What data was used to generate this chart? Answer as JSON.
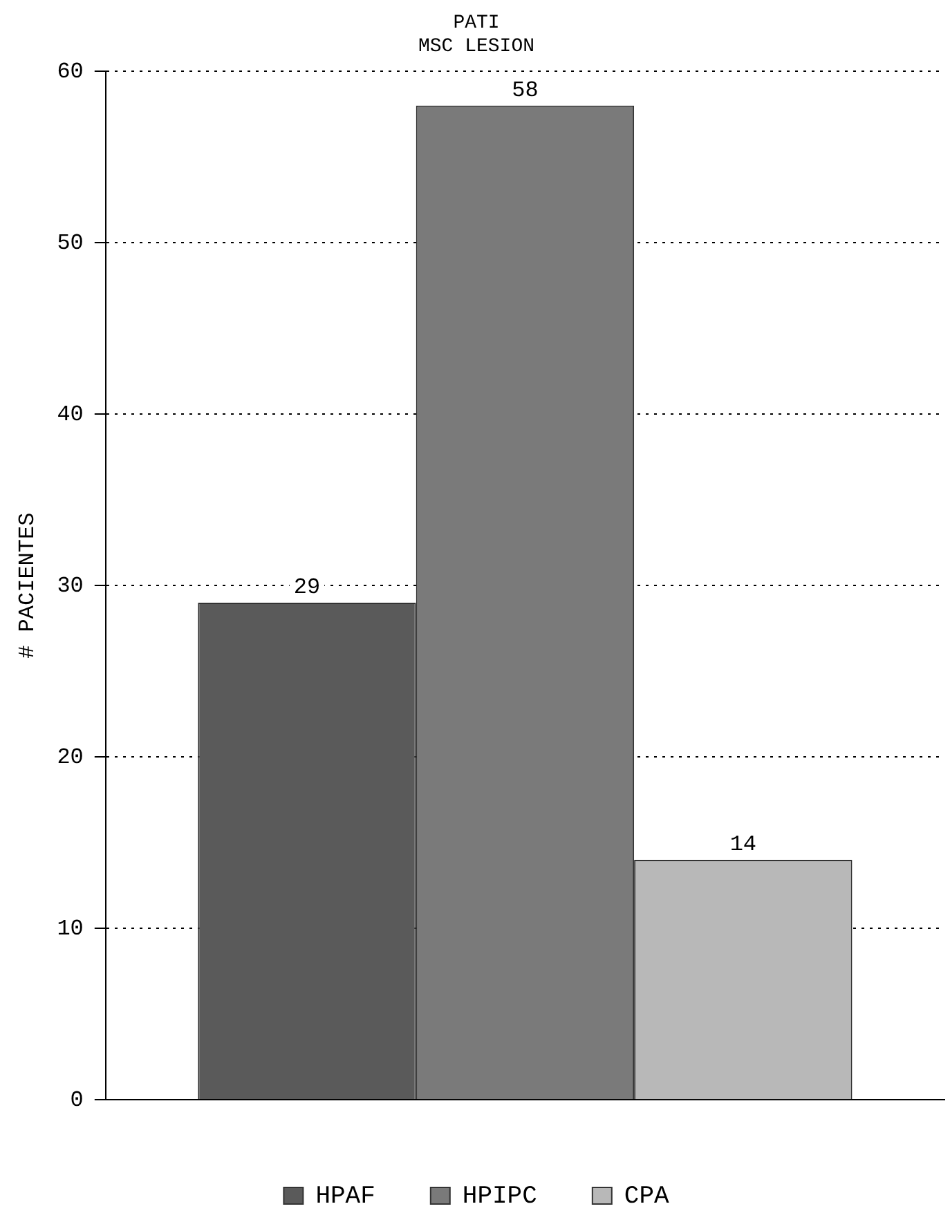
{
  "chart_data": {
    "type": "bar",
    "title": "PATI",
    "subtitle": "MSC LESION",
    "ylabel": "# PACIENTES",
    "categories": [
      null
    ],
    "series": [
      {
        "name": "HPAF",
        "color": "#5a5a5a",
        "values": [
          29
        ]
      },
      {
        "name": "HPIPC",
        "color": "#7a7a7a",
        "values": [
          58
        ]
      },
      {
        "name": "CPA",
        "color": "#b8b8b8",
        "values": [
          14
        ]
      }
    ],
    "ylim": [
      0,
      60
    ],
    "yticks": [
      0,
      10,
      20,
      30,
      40,
      50,
      60
    ],
    "grid": "y",
    "legend": "bottom",
    "data_labels": true
  }
}
